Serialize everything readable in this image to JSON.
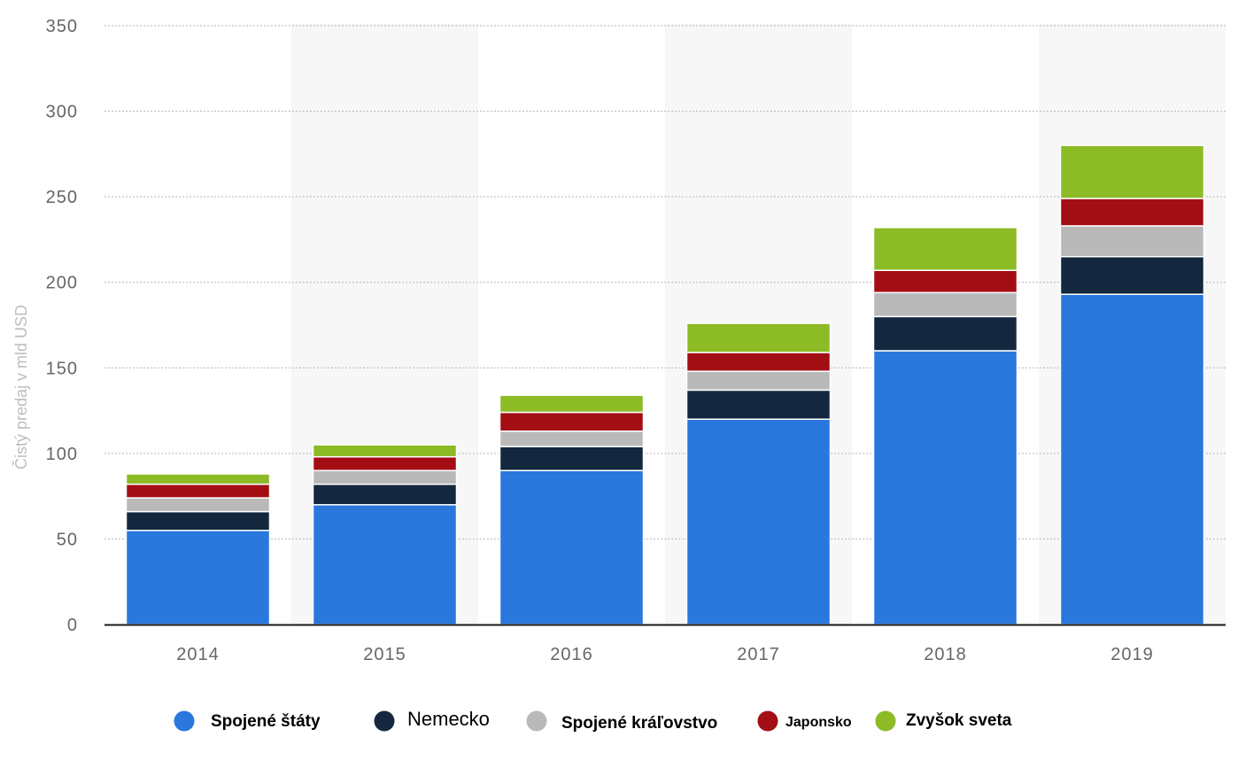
{
  "chart_data": {
    "type": "bar",
    "stacked": true,
    "ylabel": "Čistý predaj v mld USD",
    "xlabel": "",
    "ylim": [
      0,
      350
    ],
    "yticks": [
      0,
      50,
      100,
      150,
      200,
      250,
      300,
      350
    ],
    "grid": true,
    "legend_position": "bottom",
    "categories": [
      "2014",
      "2015",
      "2016",
      "2017",
      "2018",
      "2019"
    ],
    "series": [
      {
        "name": "Spojené štáty",
        "color": "#2a77de",
        "values": [
          55,
          70,
          90,
          120,
          160,
          193
        ]
      },
      {
        "name": "Nemecko",
        "color": "#13283f",
        "values": [
          11,
          12,
          14,
          17,
          20,
          22
        ]
      },
      {
        "name": "Spojené kráľovstvo",
        "color": "#b9b9b9",
        "values": [
          8,
          8,
          9,
          11,
          14,
          18
        ]
      },
      {
        "name": "Japonsko",
        "color": "#a30e14",
        "values": [
          8,
          8,
          11,
          11,
          13,
          16
        ]
      },
      {
        "name": "Zvyšok sveta",
        "color": "#8cbb26",
        "values": [
          6,
          7,
          10,
          17,
          25,
          31
        ]
      }
    ]
  }
}
